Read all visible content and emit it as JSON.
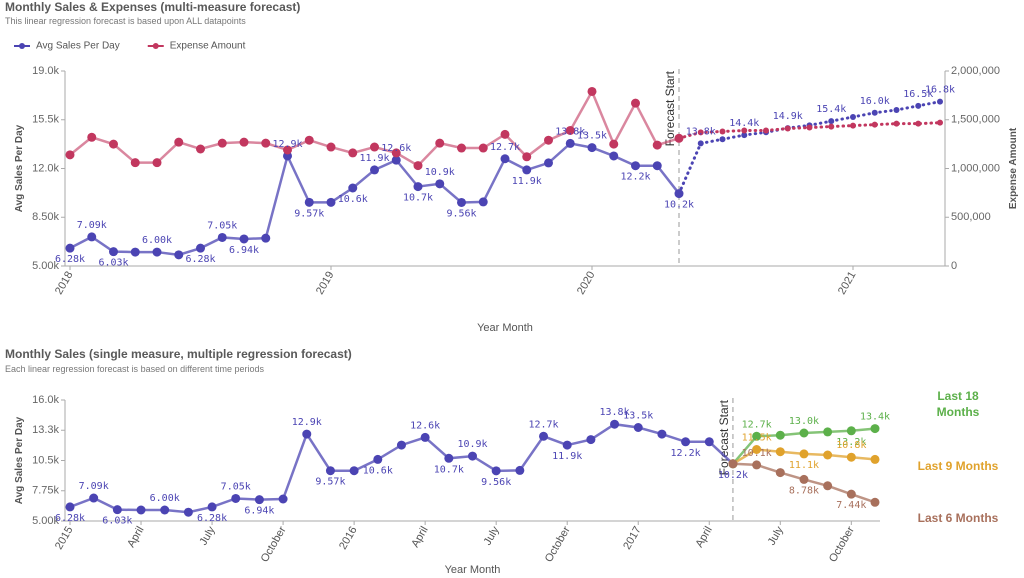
{
  "chart_data": [
    {
      "type": "line",
      "title": "Monthly Sales & Expenses (multi-measure forecast)",
      "subtitle": "This linear regression forecast is based upon ALL datapoints",
      "x_label": "Year Month",
      "y_label": "Avg Sales Per Day",
      "y2_label": "Expense Amount",
      "legend": "top-left",
      "grid": false,
      "forecast_line": "dotted",
      "annotations": [
        {
          "text": "Forecast Start",
          "x": 28
        }
      ],
      "categories": [
        "2018",
        null,
        null,
        null,
        null,
        null,
        null,
        null,
        null,
        null,
        null,
        null,
        "2019",
        null,
        null,
        null,
        null,
        null,
        null,
        null,
        null,
        null,
        null,
        null,
        "2020",
        null,
        null,
        null,
        null,
        null,
        null,
        null,
        null,
        null,
        null,
        null,
        "2021",
        null,
        null,
        null,
        null
      ],
      "ylim": [
        5000,
        19000
      ],
      "yticks": [
        {
          "value": 5000,
          "label": "5.00k"
        },
        {
          "value": 8500,
          "label": "8.50k"
        },
        {
          "value": 12000,
          "label": "12.0k"
        },
        {
          "value": 15500,
          "label": "15.5k"
        },
        {
          "value": 19000,
          "label": "19.0k"
        }
      ],
      "y2lim": [
        0,
        2000000
      ],
      "y2ticks": [
        0,
        {
          "value": 500000,
          "label": "500,000"
        },
        {
          "value": 1000000,
          "label": "1,000,000"
        },
        {
          "value": 1500000,
          "label": "1,500,000"
        },
        {
          "value": 2000000,
          "label": "2,000,000"
        }
      ],
      "series": [
        {
          "name": "Avg Sales Per Day",
          "color": "#4b44b3",
          "values": [
            6280,
            7090,
            6030,
            6000,
            6000,
            5800,
            6280,
            7050,
            6940,
            7000,
            12900,
            9570,
            9570,
            10600,
            11900,
            12600,
            10700,
            10900,
            9560,
            9600,
            12700,
            11900,
            12400,
            13800,
            13500,
            12900,
            12200,
            12200,
            10200,
            13800,
            14100,
            14400,
            14600,
            14900,
            15100,
            15400,
            15700,
            16000,
            16200,
            16500,
            16800
          ],
          "value_labels": [
            "6.28k",
            "7.09k",
            "6.03k",
            null,
            "6.00k",
            null,
            "6.28k",
            "7.05k",
            "6.94k",
            null,
            "12.9k",
            "9.57k",
            null,
            "10.6k",
            "11.9k",
            "12.6k",
            "10.7k",
            "10.9k",
            "9.56k",
            null,
            "12.7k",
            "11.9k",
            null,
            "13.8k",
            "13.5k",
            null,
            "12.2k",
            null,
            "10.2k",
            "13.8k",
            null,
            "14.4k",
            null,
            "14.9k",
            null,
            "15.4k",
            null,
            "16.0k",
            null,
            "16.5k",
            "16.8k"
          ]
        },
        {
          "name": "Expense Amount",
          "color": "#c2375f",
          "axis": "y2",
          "values": [
            1140000,
            1320000,
            1250000,
            1060000,
            1060000,
            1270000,
            1200000,
            1260000,
            1270000,
            1260000,
            1190000,
            1290000,
            1220000,
            1160000,
            1220000,
            1160000,
            1030000,
            1260000,
            1210000,
            1210000,
            1350000,
            1120000,
            1290000,
            1390000,
            1790000,
            1250000,
            1670000,
            1240000,
            1310000,
            1370000,
            1380000,
            1390000,
            1390000,
            1410000,
            1420000,
            1430000,
            1440000,
            1450000,
            1460000,
            1460000,
            1470000
          ]
        }
      ]
    },
    {
      "type": "line",
      "title": "Monthly Sales (single measure, multiple regression forecast)",
      "subtitle": "Each linear regression forecast is based on different time periods",
      "x_label": "Year Month",
      "y_label": "Avg Sales Per Day",
      "legend": "right",
      "grid": false,
      "annotations": [
        {
          "text": "Forecast Start",
          "x": 28
        }
      ],
      "categories": [
        "2015",
        null,
        null,
        "April",
        null,
        null,
        "July",
        null,
        null,
        "October",
        null,
        null,
        "2016",
        null,
        null,
        "April",
        null,
        null,
        "July",
        null,
        null,
        "October",
        null,
        null,
        "2017",
        null,
        null,
        "April",
        null,
        null,
        "July",
        null,
        null,
        "October",
        null
      ],
      "ylim": [
        5000,
        16000
      ],
      "yticks": [
        {
          "value": 5000,
          "label": "5.00k"
        },
        {
          "value": 7750,
          "label": "7.75k"
        },
        {
          "value": 10500,
          "label": "10.5k"
        },
        {
          "value": 13250,
          "label": "13.3k"
        },
        {
          "value": 16000,
          "label": "16.0k"
        }
      ],
      "series": [
        {
          "name": "Avg Sales Per Day",
          "color": "#4b44b3",
          "show_in_legend": false,
          "values": [
            6280,
            7090,
            6030,
            6000,
            6000,
            5800,
            6280,
            7050,
            6940,
            7000,
            12900,
            9570,
            9570,
            10600,
            11900,
            12600,
            10700,
            10900,
            9560,
            9600,
            12700,
            11900,
            12400,
            13800,
            13500,
            12900,
            12200,
            12200,
            10200,
            null,
            null,
            null,
            null,
            null,
            null
          ],
          "value_labels": [
            "6.28k",
            "7.09k",
            "6.03k",
            null,
            "6.00k",
            null,
            "6.28k",
            "7.05k",
            "6.94k",
            null,
            "12.9k",
            "9.57k",
            null,
            "10.6k",
            null,
            "12.6k",
            "10.7k",
            "10.9k",
            "9.56k",
            null,
            "12.7k",
            "11.9k",
            null,
            "13.8k",
            "13.5k",
            null,
            "12.2k",
            null,
            "10.2k",
            null,
            null,
            null,
            null,
            null,
            null
          ]
        },
        {
          "name": "Last 18 Months",
          "color": "#5cb04a",
          "values": [
            null,
            null,
            null,
            null,
            null,
            null,
            null,
            null,
            null,
            null,
            null,
            null,
            null,
            null,
            null,
            null,
            null,
            null,
            null,
            null,
            null,
            null,
            null,
            null,
            null,
            null,
            null,
            null,
            10200,
            12700,
            12800,
            13000,
            13100,
            13200,
            13400
          ],
          "value_labels": [
            null,
            null,
            null,
            null,
            null,
            null,
            null,
            null,
            null,
            null,
            null,
            null,
            null,
            null,
            null,
            null,
            null,
            null,
            null,
            null,
            null,
            null,
            null,
            null,
            null,
            null,
            null,
            null,
            null,
            "12.7k",
            null,
            "13.0k",
            null,
            "13.2k",
            "13.4k"
          ]
        },
        {
          "name": "Last 9 Months",
          "color": "#e0a22c",
          "values": [
            null,
            null,
            null,
            null,
            null,
            null,
            null,
            null,
            null,
            null,
            null,
            null,
            null,
            null,
            null,
            null,
            null,
            null,
            null,
            null,
            null,
            null,
            null,
            null,
            null,
            null,
            null,
            null,
            10200,
            11500,
            11300,
            11100,
            11000,
            10800,
            10600
          ],
          "value_labels": [
            null,
            null,
            null,
            null,
            null,
            null,
            null,
            null,
            null,
            null,
            null,
            null,
            null,
            null,
            null,
            null,
            null,
            null,
            null,
            null,
            null,
            null,
            null,
            null,
            null,
            null,
            null,
            null,
            null,
            "11.5k",
            null,
            "11.1k",
            null,
            "10.8k",
            null
          ]
        },
        {
          "name": "Last 6 Months",
          "color": "#a8705c",
          "values": [
            null,
            null,
            null,
            null,
            null,
            null,
            null,
            null,
            null,
            null,
            null,
            null,
            null,
            null,
            null,
            null,
            null,
            null,
            null,
            null,
            null,
            null,
            null,
            null,
            null,
            null,
            null,
            null,
            10200,
            10100,
            9400,
            8780,
            8200,
            7440,
            6700
          ],
          "value_labels": [
            null,
            null,
            null,
            null,
            null,
            null,
            null,
            null,
            null,
            null,
            null,
            null,
            null,
            null,
            null,
            null,
            null,
            null,
            null,
            null,
            null,
            null,
            null,
            null,
            null,
            null,
            null,
            null,
            null,
            "10.1k",
            null,
            "8.78k",
            null,
            "7.44k",
            null
          ]
        }
      ]
    }
  ]
}
